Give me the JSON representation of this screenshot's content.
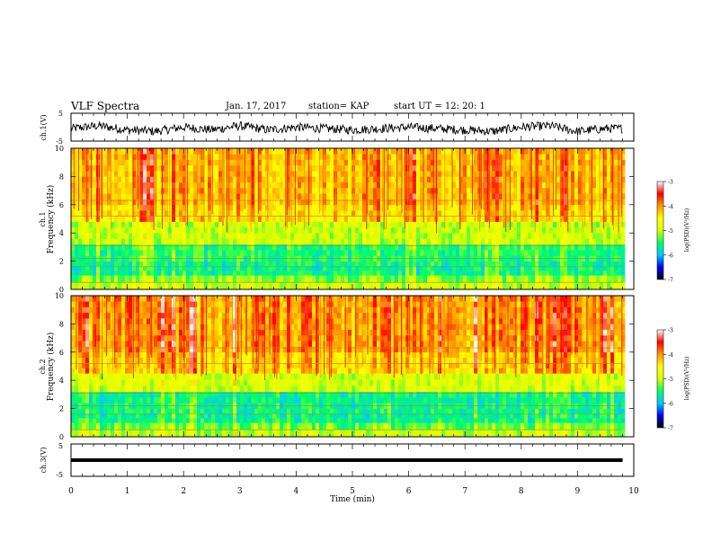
{
  "header": {
    "title": "VLF Spectra",
    "date": "Jan. 17, 2017",
    "station": "station= KAP",
    "start": "start UT = 12: 20: 1"
  },
  "chart_data": [
    {
      "type": "line",
      "panel": "ch1-waveform",
      "ylabel": "ch.1(V)",
      "ylim": [
        -5,
        5
      ],
      "yticks": [
        "5",
        "-5"
      ],
      "xlim": [
        0,
        10
      ],
      "x_units": "min",
      "trace_approx": [
        {
          "x": 0.0,
          "y": -0.5
        },
        {
          "x": 0.5,
          "y": 0.5
        },
        {
          "x": 1.0,
          "y": -1.0
        },
        {
          "x": 1.5,
          "y": -1.5
        },
        {
          "x": 2.0,
          "y": 0.0
        },
        {
          "x": 2.5,
          "y": -1.0
        },
        {
          "x": 3.0,
          "y": 0.5
        },
        {
          "x": 3.5,
          "y": -1.0
        },
        {
          "x": 4.0,
          "y": 0.0
        },
        {
          "x": 4.5,
          "y": -0.5
        },
        {
          "x": 5.0,
          "y": -1.0
        },
        {
          "x": 5.5,
          "y": -0.5
        },
        {
          "x": 6.0,
          "y": 0.0
        },
        {
          "x": 6.5,
          "y": -0.5
        },
        {
          "x": 7.0,
          "y": -1.0
        },
        {
          "x": 7.5,
          "y": -1.5
        },
        {
          "x": 8.0,
          "y": 0.0
        },
        {
          "x": 8.5,
          "y": 0.5
        },
        {
          "x": 9.0,
          "y": -1.5
        },
        {
          "x": 9.5,
          "y": -0.5
        },
        {
          "x": 9.8,
          "y": -0.5
        }
      ]
    },
    {
      "type": "heatmap",
      "panel": "ch1-spectrogram",
      "ylabel_line1": "ch.1",
      "ylabel_line2": "Frequency (kHz)",
      "ylim": [
        0,
        10
      ],
      "yticks": [
        "0",
        "2",
        "4",
        "6",
        "8",
        "10"
      ],
      "xlim": [
        0,
        10
      ],
      "data_xmax": 9.8,
      "colorbar": {
        "label": "log(PSD)(V²/Hz)",
        "range": [
          -7,
          -3
        ],
        "ticks": [
          "-3",
          "-4",
          "-5",
          "-6",
          "-7"
        ],
        "colors": [
          "#000000",
          "#0000ff",
          "#00c8ff",
          "#00ff66",
          "#d8ff00",
          "#ffff00",
          "#ff9900",
          "#ff0000",
          "#ffffff"
        ]
      },
      "bands_approx": [
        {
          "f_min": 0.0,
          "f_max": 0.5,
          "level": -5.0
        },
        {
          "f_min": 0.5,
          "f_max": 1.0,
          "level": -5.2
        },
        {
          "f_min": 1.0,
          "f_max": 2.0,
          "level": -5.6
        },
        {
          "f_min": 2.0,
          "f_max": 3.2,
          "level": -5.5
        },
        {
          "f_min": 3.2,
          "f_max": 4.8,
          "level": -5.0
        },
        {
          "f_min": 4.8,
          "f_max": 6.0,
          "level": -4.4
        },
        {
          "f_min": 6.0,
          "f_max": 10.0,
          "level": -4.2
        }
      ]
    },
    {
      "type": "heatmap",
      "panel": "ch2-spectrogram",
      "ylabel_line1": "ch.2",
      "ylabel_line2": "Frequency (kHz)",
      "ylim": [
        0,
        10
      ],
      "yticks": [
        "0",
        "2",
        "4",
        "6",
        "8",
        "10"
      ],
      "xlim": [
        0,
        10
      ],
      "data_xmax": 9.8,
      "colorbar": {
        "label": "log(PSD)(V²/Hz)",
        "range": [
          -7,
          -3
        ],
        "ticks": [
          "-3",
          "-4",
          "-5",
          "-6",
          "-7"
        ]
      },
      "bands_approx": [
        {
          "f_min": 0.0,
          "f_max": 0.5,
          "level": -5.0
        },
        {
          "f_min": 0.5,
          "f_max": 1.0,
          "level": -5.3
        },
        {
          "f_min": 1.0,
          "f_max": 2.0,
          "level": -5.6
        },
        {
          "f_min": 2.0,
          "f_max": 3.2,
          "level": -5.6
        },
        {
          "f_min": 3.2,
          "f_max": 4.5,
          "level": -4.9
        },
        {
          "f_min": 4.5,
          "f_max": 6.0,
          "level": -4.3
        },
        {
          "f_min": 6.0,
          "f_max": 10.0,
          "level": -4.0
        }
      ]
    },
    {
      "type": "line",
      "panel": "ch3-waveform",
      "ylabel": "ch.3(V)",
      "ylim": [
        -5,
        5
      ],
      "yticks": [
        "5",
        "-5"
      ],
      "xlim": [
        0,
        10
      ],
      "trace_approx": [
        {
          "x": 0.0,
          "y": 0.0
        },
        {
          "x": 9.8,
          "y": 0.0
        }
      ],
      "xlabel": "Time (min)",
      "xticks": [
        "0",
        "1",
        "2",
        "3",
        "4",
        "5",
        "6",
        "7",
        "8",
        "9",
        "10"
      ]
    }
  ]
}
